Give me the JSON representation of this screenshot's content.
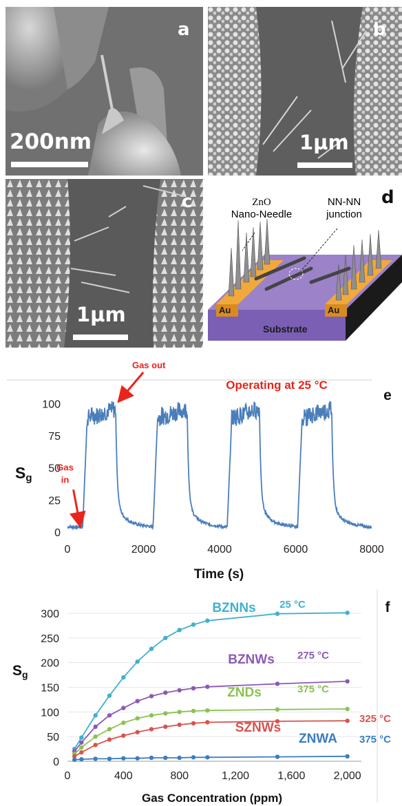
{
  "panels": {
    "a": {
      "letter": "a",
      "scale": "200nm"
    },
    "b": {
      "letter": "b",
      "scale": "1µm"
    },
    "c": {
      "letter": "c",
      "scale": "1µm"
    },
    "d": {
      "letter": "d",
      "zno_label_line1": "ZnO",
      "zno_label_line2": "Nano-Needle",
      "junction_line1": "NN-NN",
      "junction_line2": "junction",
      "electrode_left": "Au",
      "electrode_right": "Au",
      "substrate": "Substrate"
    }
  },
  "colors": {
    "line_e": "#4a7ebb",
    "annotation": "#e8241c"
  },
  "chart_data": [
    {
      "type": "line",
      "panel": "e",
      "title": "Operating at 25 °C",
      "xlabel": "Time (s)",
      "ylabel_main": "S",
      "ylabel_sub": "g",
      "xlim": [
        0,
        8000
      ],
      "ylim": [
        0,
        105
      ],
      "xticks": [
        "0",
        "2000",
        "4000",
        "6000",
        "8000"
      ],
      "yticks": [
        "0",
        "25",
        "50",
        "75",
        "100"
      ],
      "annotations": {
        "gas_out": "Gas out",
        "gas_in_line1": "Gas",
        "gas_in_line2": "in"
      },
      "cycles": [
        {
          "on": 400,
          "off": 1270
        },
        {
          "on": 2250,
          "off": 3150
        },
        {
          "on": 4200,
          "off": 5050
        },
        {
          "on": 6050,
          "off": 6950
        }
      ],
      "baseline": 4,
      "plateau": 95
    },
    {
      "type": "line",
      "panel": "f",
      "xlabel": "Gas Concentration (ppm)",
      "ylabel_main": "S",
      "ylabel_sub": "g",
      "xlim": [
        0,
        2100
      ],
      "ylim": [
        0,
        300
      ],
      "xticks": [
        "0",
        "400",
        "800",
        "1,200",
        "1,600",
        "2,000"
      ],
      "yticks": [
        "0",
        "50",
        "100",
        "150",
        "200",
        "250",
        "300"
      ],
      "x": [
        50,
        100,
        200,
        300,
        400,
        500,
        600,
        700,
        800,
        900,
        1000,
        1500,
        2000
      ],
      "series": [
        {
          "name": "BZNNs",
          "temp": "25 °C",
          "color": "#3fb1cf",
          "values": [
            25,
            48,
            93,
            133,
            170,
            202,
            228,
            250,
            266,
            277,
            285,
            299,
            301
          ]
        },
        {
          "name": "BZNWs",
          "temp": "275 °C",
          "color": "#8c59b5",
          "values": [
            20,
            38,
            70,
            93,
            108,
            122,
            132,
            139,
            144,
            148,
            151,
            157,
            162
          ]
        },
        {
          "name": "ZNDs",
          "temp": "375 °C",
          "color": "#8cc152",
          "values": [
            15,
            28,
            50,
            65,
            78,
            87,
            93,
            97,
            100,
            102,
            103,
            105,
            106
          ]
        },
        {
          "name": "SZNWs",
          "temp": "325 °C",
          "color": "#d9534f",
          "values": [
            10,
            18,
            33,
            44,
            52,
            59,
            65,
            70,
            74,
            77,
            79,
            81,
            82
          ]
        },
        {
          "name": "ZNWA",
          "temp": "375 °C",
          "color": "#3a7dbf",
          "values": [
            3,
            4,
            5,
            5,
            6,
            6,
            7,
            7,
            7,
            8,
            8,
            9,
            10
          ]
        }
      ]
    }
  ]
}
